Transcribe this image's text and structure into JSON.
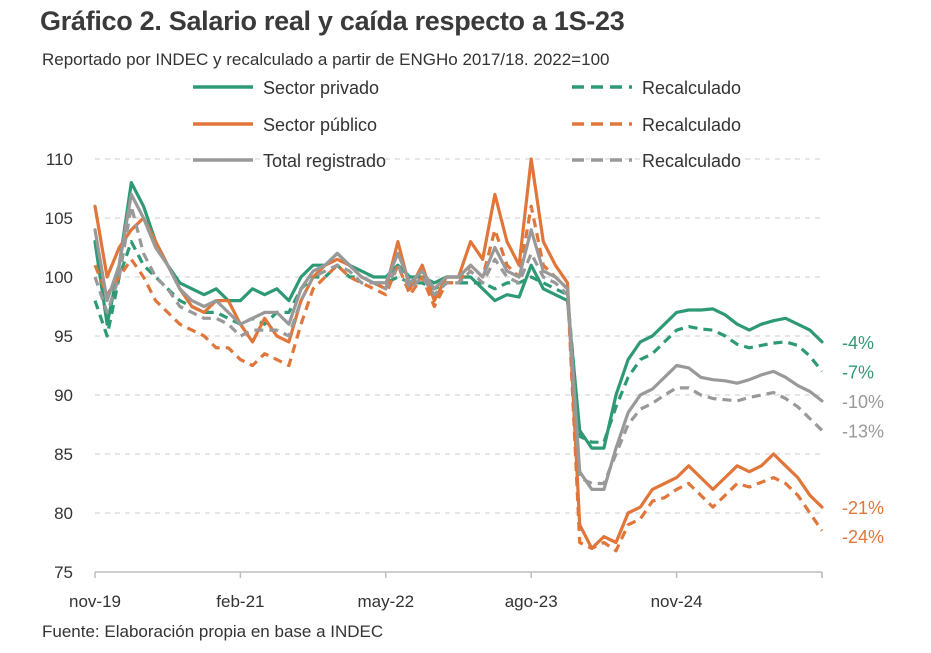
{
  "title": "Gráfico 2. Salario real y caída respecto a 1S-23",
  "subtitle": "Reportado por INDEC y recalculado a partir de ENGHo 2017/18. 2022=100",
  "source": "Fuente: Elaboración propia en base a INDEC",
  "colors": {
    "privado": "#2e9a75",
    "publico": "#e0763a",
    "total": "#999999",
    "grid": "#d6d6d6",
    "axis": "#bdbdbd"
  },
  "chart_data": {
    "type": "line",
    "ylim": [
      75,
      110
    ],
    "yticks": [
      75,
      80,
      85,
      90,
      95,
      100,
      105,
      110
    ],
    "x_range": [
      0,
      60
    ],
    "xticks": [
      {
        "label": "nov-19",
        "x": 0
      },
      {
        "label": "feb-21",
        "x": 12
      },
      {
        "label": "may-22",
        "x": 24
      },
      {
        "label": "ago-23",
        "x": 36
      },
      {
        "label": "nov-24",
        "x": 48
      }
    ],
    "legend": [
      {
        "label": "Sector privado",
        "series": "privado"
      },
      {
        "label": "Recalculado",
        "series": "privado_recalc"
      },
      {
        "label": "Sector público",
        "series": "publico"
      },
      {
        "label": "Recalculado",
        "series": "publico_recalc"
      },
      {
        "label": "Total registrado",
        "series": "total"
      },
      {
        "label": "Recalculado",
        "series": "total_recalc"
      }
    ],
    "series": [
      {
        "name": "privado",
        "color_key": "privado",
        "dashed": false,
        "end_label": "-4%",
        "x": [
          0,
          1,
          2,
          3,
          4,
          5,
          6,
          7,
          8,
          9,
          10,
          11,
          12,
          13,
          14,
          15,
          16,
          17,
          18,
          19,
          20,
          21,
          22,
          23,
          24,
          25,
          26,
          27,
          28,
          29,
          30,
          31,
          32,
          33,
          34,
          35,
          36,
          37,
          38,
          39,
          40,
          41,
          42,
          43,
          44,
          45,
          46,
          47,
          48,
          49,
          50,
          51,
          52,
          53,
          54,
          55,
          56,
          57,
          58,
          59,
          60
        ],
        "values": [
          103,
          96,
          101,
          108,
          106,
          103,
          101,
          99.5,
          99,
          98.5,
          99,
          98,
          98,
          99,
          98.5,
          99,
          98,
          100,
          101,
          101,
          102,
          101,
          100.5,
          100,
          100,
          101,
          100,
          100,
          99.5,
          100,
          100,
          100,
          99,
          98,
          98.5,
          98.3,
          101,
          99,
          98.5,
          98,
          87,
          85.5,
          85.5,
          90,
          93,
          94.5,
          95,
          96,
          97,
          97.2,
          97.2,
          97.3,
          96.8,
          96,
          95.5,
          96,
          96.3,
          96.5,
          96,
          95.5,
          94.5
        ]
      },
      {
        "name": "privado_recalc",
        "color_key": "privado",
        "dashed": true,
        "end_label": "-7%",
        "x": [
          0,
          1,
          2,
          3,
          4,
          5,
          6,
          7,
          8,
          9,
          10,
          11,
          12,
          13,
          14,
          15,
          16,
          17,
          18,
          19,
          20,
          21,
          22,
          23,
          24,
          25,
          26,
          27,
          28,
          29,
          30,
          31,
          32,
          33,
          34,
          35,
          36,
          37,
          38,
          39,
          40,
          41,
          42,
          43,
          44,
          45,
          46,
          47,
          48,
          49,
          50,
          51,
          52,
          53,
          54,
          55,
          56,
          57,
          58,
          59,
          60
        ],
        "values": [
          98,
          95,
          100,
          103,
          101,
          100,
          99,
          98,
          97.5,
          97,
          97,
          96.5,
          96,
          96.5,
          96,
          97,
          97,
          99,
          100,
          100,
          101,
          100,
          100,
          99.5,
          99.5,
          100,
          99.5,
          99.5,
          99,
          99.5,
          99.5,
          99.5,
          99.5,
          99,
          99.5,
          99.5,
          100,
          99.5,
          99,
          98.5,
          86.5,
          86,
          86,
          89,
          91.5,
          93,
          93.5,
          94.5,
          95.5,
          95.8,
          95.6,
          95.5,
          95,
          94.3,
          94,
          94.2,
          94.4,
          94.5,
          94.2,
          93.3,
          92
        ]
      },
      {
        "name": "publico",
        "color_key": "publico",
        "dashed": false,
        "end_label": "-21%",
        "x": [
          0,
          1,
          2,
          3,
          4,
          5,
          6,
          7,
          8,
          9,
          10,
          11,
          12,
          13,
          14,
          15,
          16,
          17,
          18,
          19,
          20,
          21,
          22,
          23,
          24,
          25,
          26,
          27,
          28,
          29,
          30,
          31,
          32,
          33,
          34,
          35,
          36,
          37,
          38,
          39,
          40,
          41,
          42,
          43,
          44,
          45,
          46,
          47,
          48,
          49,
          50,
          51,
          52,
          53,
          54,
          55,
          56,
          57,
          58,
          59,
          60
        ],
        "values": [
          106,
          100,
          102.5,
          104,
          105,
          103,
          101,
          99,
          97.5,
          97,
          98,
          98,
          96,
          94.5,
          96.5,
          95,
          94.5,
          98,
          100,
          101,
          101.5,
          101,
          100,
          99.5,
          99,
          103,
          99,
          101,
          98,
          100,
          100,
          103,
          101.5,
          107,
          103,
          101,
          110,
          103,
          101,
          99.5,
          79,
          77,
          78,
          77.5,
          80,
          80.5,
          82,
          82.5,
          83,
          84,
          83,
          82,
          83,
          84,
          83.5,
          84,
          85,
          84,
          83,
          81.5,
          80.5
        ]
      },
      {
        "name": "publico_recalc",
        "color_key": "publico",
        "dashed": true,
        "end_label": "-24%",
        "x": [
          0,
          1,
          2,
          3,
          4,
          5,
          6,
          7,
          8,
          9,
          10,
          11,
          12,
          13,
          14,
          15,
          16,
          17,
          18,
          19,
          20,
          21,
          22,
          23,
          24,
          25,
          26,
          27,
          28,
          29,
          30,
          31,
          32,
          33,
          34,
          35,
          36,
          37,
          38,
          39,
          40,
          41,
          42,
          43,
          44,
          45,
          46,
          47,
          48,
          49,
          50,
          51,
          52,
          53,
          54,
          55,
          56,
          57,
          58,
          59,
          60
        ],
        "values": [
          101,
          98.5,
          100,
          101.5,
          100,
          98,
          97,
          96,
          95.5,
          95,
          94,
          94,
          93,
          92.5,
          93.5,
          93,
          92.5,
          96,
          99,
          100,
          101,
          100,
          99.5,
          99,
          98.5,
          101,
          98.5,
          100,
          97.5,
          99.5,
          99.5,
          101,
          100,
          104,
          101,
          100,
          106,
          101,
          100,
          99,
          77.5,
          77,
          77.5,
          76.8,
          79,
          79.5,
          81,
          81.3,
          82,
          82.5,
          81.5,
          80.5,
          81.5,
          82.5,
          82.2,
          82.6,
          83,
          82.5,
          81.5,
          80,
          78.5
        ]
      },
      {
        "name": "total",
        "color_key": "total",
        "dashed": false,
        "end_label": "-10%",
        "x": [
          0,
          1,
          2,
          3,
          4,
          5,
          6,
          7,
          8,
          9,
          10,
          11,
          12,
          13,
          14,
          15,
          16,
          17,
          18,
          19,
          20,
          21,
          22,
          23,
          24,
          25,
          26,
          27,
          28,
          29,
          30,
          31,
          32,
          33,
          34,
          35,
          36,
          37,
          38,
          39,
          40,
          41,
          42,
          43,
          44,
          45,
          46,
          47,
          48,
          49,
          50,
          51,
          52,
          53,
          54,
          55,
          56,
          57,
          58,
          59,
          60
        ],
        "values": [
          104,
          98,
          101,
          107,
          105,
          102.5,
          101,
          99,
          98,
          97.5,
          98,
          97,
          96,
          96.5,
          97,
          97,
          96,
          99,
          100.5,
          101,
          102,
          101,
          100,
          99.5,
          99.5,
          102,
          99.5,
          100.5,
          99,
          100,
          100,
          101,
          100,
          102.5,
          100.5,
          100,
          104,
          100.5,
          100,
          99,
          83.5,
          82,
          82,
          85.5,
          88.5,
          90,
          90.5,
          91.5,
          92.5,
          92.3,
          91.5,
          91.3,
          91.2,
          91,
          91.3,
          91.7,
          92,
          91.5,
          90.8,
          90.3,
          89.5
        ]
      },
      {
        "name": "total_recalc",
        "color_key": "total",
        "dashed": true,
        "end_label": "-13%",
        "x": [
          0,
          1,
          2,
          3,
          4,
          5,
          6,
          7,
          8,
          9,
          10,
          11,
          12,
          13,
          14,
          15,
          16,
          17,
          18,
          19,
          20,
          21,
          22,
          23,
          24,
          25,
          26,
          27,
          28,
          29,
          30,
          31,
          32,
          33,
          34,
          35,
          36,
          37,
          38,
          39,
          40,
          41,
          42,
          43,
          44,
          45,
          46,
          47,
          48,
          49,
          50,
          51,
          52,
          53,
          54,
          55,
          56,
          57,
          58,
          59,
          60
        ],
        "values": [
          100,
          97,
          100,
          106,
          102,
          100,
          99,
          97.5,
          97,
          96.5,
          96.5,
          96,
          95,
          95.5,
          95.5,
          95.5,
          95,
          98,
          100,
          100.5,
          101,
          100.5,
          99.5,
          99.5,
          99,
          101,
          99,
          100,
          98.5,
          99.5,
          99.5,
          100.5,
          99.5,
          101.5,
          100,
          99.5,
          102,
          100,
          99.5,
          98.5,
          83,
          82.5,
          82.5,
          85,
          87.5,
          88.8,
          89.3,
          90,
          90.6,
          90.6,
          90,
          89.7,
          89.6,
          89.5,
          89.8,
          90,
          90.2,
          89.7,
          89,
          88,
          87
        ]
      }
    ]
  }
}
